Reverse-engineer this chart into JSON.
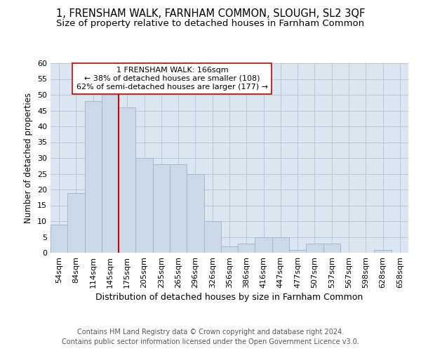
{
  "title": "1, FRENSHAM WALK, FARNHAM COMMON, SLOUGH, SL2 3QF",
  "subtitle": "Size of property relative to detached houses in Farnham Common",
  "xlabel": "Distribution of detached houses by size in Farnham Common",
  "ylabel": "Number of detached properties",
  "bar_labels": [
    "54sqm",
    "84sqm",
    "114sqm",
    "145sqm",
    "175sqm",
    "205sqm",
    "235sqm",
    "265sqm",
    "296sqm",
    "326sqm",
    "356sqm",
    "386sqm",
    "416sqm",
    "447sqm",
    "477sqm",
    "507sqm",
    "537sqm",
    "567sqm",
    "598sqm",
    "628sqm",
    "658sqm"
  ],
  "bar_values": [
    9,
    19,
    48,
    50,
    46,
    30,
    28,
    28,
    25,
    10,
    2,
    3,
    5,
    5,
    1,
    3,
    3,
    0,
    0,
    1,
    0
  ],
  "bar_color": "#ccd9e8",
  "bar_edge_color": "#a0b8d0",
  "vline_color": "#cc0000",
  "vline_x_index": 4,
  "annotation_text": "1 FRENSHAM WALK: 166sqm\n← 38% of detached houses are smaller (108)\n62% of semi-detached houses are larger (177) →",
  "annotation_box_color": "#ffffff",
  "annotation_box_edge": "#cc0000",
  "ylim": [
    0,
    60
  ],
  "yticks": [
    0,
    5,
    10,
    15,
    20,
    25,
    30,
    35,
    40,
    45,
    50,
    55,
    60
  ],
  "grid_color": "#b8c8d8",
  "background_color": "#dce6f0",
  "footer": "Contains HM Land Registry data © Crown copyright and database right 2024.\nContains public sector information licensed under the Open Government Licence v3.0.",
  "title_fontsize": 10.5,
  "subtitle_fontsize": 9.5,
  "xlabel_fontsize": 9,
  "ylabel_fontsize": 8.5,
  "tick_fontsize": 8,
  "annotation_fontsize": 8,
  "footer_fontsize": 7
}
